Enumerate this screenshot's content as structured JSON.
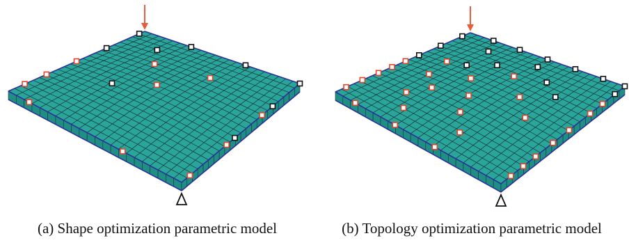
{
  "colors": {
    "mesh_fill": "#2aa59a",
    "mesh_side": "#1f8f86",
    "mesh_line": "#16303a",
    "edge": "#2b2f9a",
    "load_arrow": "#ea5a3c",
    "red_marker": "#e0452c",
    "black_marker": "#111111",
    "support": "#111111"
  },
  "icons": {
    "load": "down-arrow-icon",
    "support": "triangle-support-icon",
    "design_point": "square-marker-icon"
  },
  "panels": [
    {
      "id": "a",
      "caption": "(a)  Shape optimization parametric model",
      "red_markers": [
        [
          0.5,
          0.0
        ],
        [
          0.72,
          0.0
        ],
        [
          0.88,
          0.0
        ],
        [
          1.0,
          0.12
        ],
        [
          1.0,
          0.66
        ],
        [
          0.93,
          1.0
        ],
        [
          0.62,
          1.0
        ],
        [
          0.32,
          1.0
        ],
        [
          0.28,
          0.3
        ],
        [
          0.45,
          0.45
        ],
        [
          0.22,
          0.6
        ]
      ],
      "black_markers": [
        [
          0.28,
          0.0
        ],
        [
          0.04,
          0.0
        ],
        [
          0.0,
          0.3
        ],
        [
          0.0,
          0.65
        ],
        [
          0.0,
          1.0
        ],
        [
          0.23,
          1.0
        ],
        [
          0.55,
          1.0
        ],
        [
          0.14,
          0.2
        ],
        [
          0.58,
          0.28
        ]
      ]
    },
    {
      "id": "b",
      "caption": "(b)  Topology optimization parametric model",
      "red_markers": [
        [
          0.48,
          0.0
        ],
        [
          0.58,
          0.0
        ],
        [
          0.68,
          0.0
        ],
        [
          0.8,
          0.0
        ],
        [
          0.92,
          0.0
        ],
        [
          1.0,
          0.12
        ],
        [
          1.0,
          0.36
        ],
        [
          1.0,
          0.6
        ],
        [
          0.92,
          1.0
        ],
        [
          0.82,
          1.0
        ],
        [
          0.72,
          1.0
        ],
        [
          0.58,
          1.0
        ],
        [
          0.45,
          1.0
        ],
        [
          0.28,
          1.0
        ],
        [
          0.18,
          1.0
        ],
        [
          0.52,
          0.18
        ],
        [
          0.62,
          0.28
        ],
        [
          0.74,
          0.22
        ],
        [
          0.86,
          0.3
        ],
        [
          0.42,
          0.36
        ],
        [
          0.56,
          0.46
        ],
        [
          0.7,
          0.52
        ],
        [
          0.83,
          0.62
        ],
        [
          0.26,
          0.5
        ],
        [
          0.4,
          0.65
        ],
        [
          0.52,
          0.78
        ],
        [
          0.35,
          0.15
        ]
      ],
      "black_markers": [
        [
          0.38,
          0.0
        ],
        [
          0.22,
          0.0
        ],
        [
          0.06,
          0.0
        ],
        [
          0.0,
          0.15
        ],
        [
          0.0,
          0.32
        ],
        [
          0.0,
          0.5
        ],
        [
          0.0,
          0.68
        ],
        [
          0.0,
          0.86
        ],
        [
          0.0,
          1.0
        ],
        [
          0.08,
          1.0
        ],
        [
          0.12,
          0.22
        ],
        [
          0.22,
          0.36
        ],
        [
          0.32,
          0.25
        ],
        [
          0.1,
          0.52
        ],
        [
          0.2,
          0.66
        ],
        [
          0.28,
          0.78
        ]
      ]
    }
  ]
}
